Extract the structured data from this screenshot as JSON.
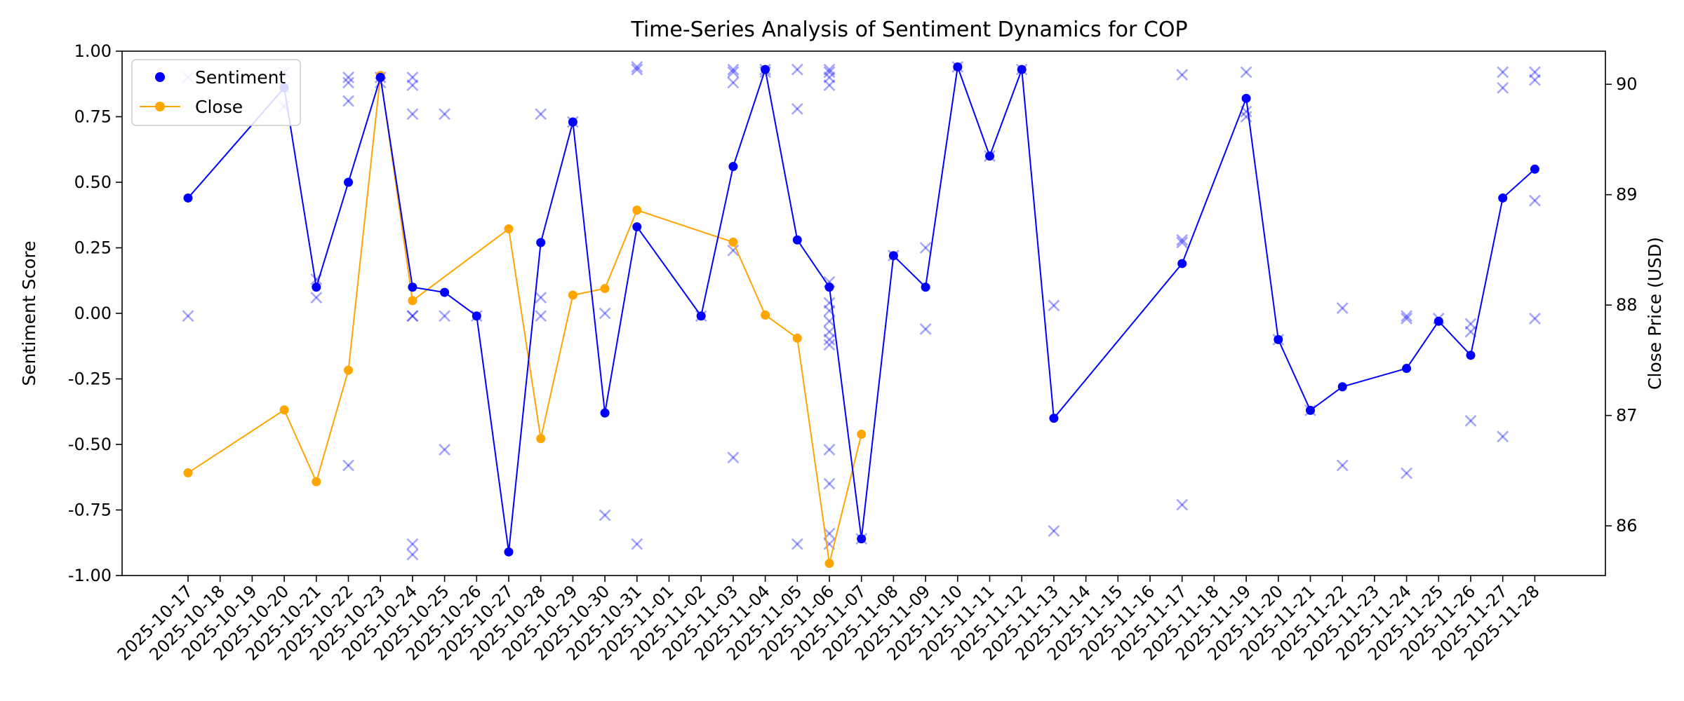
{
  "chart_data": {
    "type": "line",
    "title": "Time-Series Analysis of Sentiment Dynamics for COP",
    "xlabel": "",
    "ylabel": "Sentiment Score",
    "y2label": "Close Price (USD)",
    "ylim": [
      -1.0,
      1.0
    ],
    "y2lim": [
      85.55,
      90.3
    ],
    "yticks": [
      "1.00",
      "0.75",
      "0.50",
      "0.25",
      "0.00",
      "-0.25",
      "-0.50",
      "-0.75",
      "-1.00"
    ],
    "y2ticks": [
      "90",
      "89",
      "88",
      "87",
      "86"
    ],
    "grid": false,
    "legend_position": "top-left",
    "dates": [
      "2025-10-17",
      "2025-10-18",
      "2025-10-19",
      "2025-10-20",
      "2025-10-21",
      "2025-10-22",
      "2025-10-23",
      "2025-10-24",
      "2025-10-25",
      "2025-10-26",
      "2025-10-27",
      "2025-10-28",
      "2025-10-29",
      "2025-10-30",
      "2025-10-31",
      "2025-11-01",
      "2025-11-02",
      "2025-11-03",
      "2025-11-04",
      "2025-11-05",
      "2025-11-06",
      "2025-11-07",
      "2025-11-08",
      "2025-11-09",
      "2025-11-10",
      "2025-11-11",
      "2025-11-12",
      "2025-11-13",
      "2025-11-14",
      "2025-11-15",
      "2025-11-16",
      "2025-11-17",
      "2025-11-18",
      "2025-11-19",
      "2025-11-20",
      "2025-11-21",
      "2025-11-22",
      "2025-11-23",
      "2025-11-24",
      "2025-11-25",
      "2025-11-26",
      "2025-11-27",
      "2025-11-28"
    ],
    "series": [
      {
        "name": "Sentiment",
        "color": "#0000ff",
        "marker": "circle",
        "points": [
          {
            "x": "2025-10-17",
            "y": 0.44
          },
          {
            "x": "2025-10-20",
            "y": 0.86
          },
          {
            "x": "2025-10-21",
            "y": 0.1
          },
          {
            "x": "2025-10-22",
            "y": 0.5
          },
          {
            "x": "2025-10-23",
            "y": 0.9
          },
          {
            "x": "2025-10-24",
            "y": 0.1
          },
          {
            "x": "2025-10-25",
            "y": 0.08
          },
          {
            "x": "2025-10-26",
            "y": -0.01
          },
          {
            "x": "2025-10-27",
            "y": -0.91
          },
          {
            "x": "2025-10-28",
            "y": 0.27
          },
          {
            "x": "2025-10-29",
            "y": 0.73
          },
          {
            "x": "2025-10-30",
            "y": -0.38
          },
          {
            "x": "2025-10-31",
            "y": 0.33
          },
          {
            "x": "2025-11-02",
            "y": -0.01
          },
          {
            "x": "2025-11-03",
            "y": 0.56
          },
          {
            "x": "2025-11-04",
            "y": 0.93
          },
          {
            "x": "2025-11-05",
            "y": 0.28
          },
          {
            "x": "2025-11-06",
            "y": 0.1
          },
          {
            "x": "2025-11-07",
            "y": -0.86
          },
          {
            "x": "2025-11-08",
            "y": 0.22
          },
          {
            "x": "2025-11-09",
            "y": 0.1
          },
          {
            "x": "2025-11-10",
            "y": 0.94
          },
          {
            "x": "2025-11-11",
            "y": 0.6
          },
          {
            "x": "2025-11-12",
            "y": 0.93
          },
          {
            "x": "2025-11-13",
            "y": -0.4
          },
          {
            "x": "2025-11-17",
            "y": 0.19
          },
          {
            "x": "2025-11-19",
            "y": 0.82
          },
          {
            "x": "2025-11-20",
            "y": -0.1
          },
          {
            "x": "2025-11-21",
            "y": -0.37
          },
          {
            "x": "2025-11-22",
            "y": -0.28
          },
          {
            "x": "2025-11-24",
            "y": -0.21
          },
          {
            "x": "2025-11-25",
            "y": -0.03
          },
          {
            "x": "2025-11-26",
            "y": -0.16
          },
          {
            "x": "2025-11-27",
            "y": 0.44
          },
          {
            "x": "2025-11-28",
            "y": 0.55
          }
        ]
      },
      {
        "name": "Close",
        "color": "#ffa500",
        "marker": "circle",
        "axis": "right",
        "points": [
          {
            "x": "2025-10-17",
            "y": 86.48
          },
          {
            "x": "2025-10-20",
            "y": 87.05
          },
          {
            "x": "2025-10-21",
            "y": 86.4
          },
          {
            "x": "2025-10-22",
            "y": 87.41
          },
          {
            "x": "2025-10-23",
            "y": 90.08
          },
          {
            "x": "2025-10-24",
            "y": 88.04
          },
          {
            "x": "2025-10-27",
            "y": 88.69
          },
          {
            "x": "2025-10-28",
            "y": 86.79
          },
          {
            "x": "2025-10-29",
            "y": 88.09
          },
          {
            "x": "2025-10-30",
            "y": 88.15
          },
          {
            "x": "2025-10-31",
            "y": 88.86
          },
          {
            "x": "2025-11-03",
            "y": 88.57
          },
          {
            "x": "2025-11-04",
            "y": 87.91
          },
          {
            "x": "2025-11-05",
            "y": 87.7
          },
          {
            "x": "2025-11-06",
            "y": 85.66
          },
          {
            "x": "2025-11-07",
            "y": 86.83
          }
        ]
      }
    ],
    "scatter": {
      "marker": "x",
      "color": "#0000ff",
      "opacity": 0.35,
      "points": [
        {
          "x": "2025-10-17",
          "y": 0.9
        },
        {
          "x": "2025-10-17",
          "y": -0.01
        },
        {
          "x": "2025-10-20",
          "y": 0.92
        },
        {
          "x": "2025-10-20",
          "y": 0.86
        },
        {
          "x": "2025-10-20",
          "y": 0.79
        },
        {
          "x": "2025-10-21",
          "y": 0.13
        },
        {
          "x": "2025-10-21",
          "y": 0.06
        },
        {
          "x": "2025-10-22",
          "y": 0.9
        },
        {
          "x": "2025-10-22",
          "y": 0.88
        },
        {
          "x": "2025-10-22",
          "y": 0.81
        },
        {
          "x": "2025-10-22",
          "y": -0.58
        },
        {
          "x": "2025-10-23",
          "y": 0.9
        },
        {
          "x": "2025-10-23",
          "y": 0.88
        },
        {
          "x": "2025-10-24",
          "y": 0.9
        },
        {
          "x": "2025-10-24",
          "y": 0.87
        },
        {
          "x": "2025-10-24",
          "y": 0.76
        },
        {
          "x": "2025-10-24",
          "y": -0.01
        },
        {
          "x": "2025-10-24",
          "y": -0.01
        },
        {
          "x": "2025-10-24",
          "y": -0.88
        },
        {
          "x": "2025-10-24",
          "y": -0.92
        },
        {
          "x": "2025-10-25",
          "y": 0.76
        },
        {
          "x": "2025-10-25",
          "y": -0.01
        },
        {
          "x": "2025-10-25",
          "y": -0.52
        },
        {
          "x": "2025-10-26",
          "y": -0.01
        },
        {
          "x": "2025-10-28",
          "y": 0.76
        },
        {
          "x": "2025-10-28",
          "y": 0.06
        },
        {
          "x": "2025-10-28",
          "y": -0.01
        },
        {
          "x": "2025-10-29",
          "y": 0.73
        },
        {
          "x": "2025-10-30",
          "y": 0.0
        },
        {
          "x": "2025-10-30",
          "y": -0.77
        },
        {
          "x": "2025-10-31",
          "y": 0.93
        },
        {
          "x": "2025-10-31",
          "y": 0.94
        },
        {
          "x": "2025-10-31",
          "y": -0.88
        },
        {
          "x": "2025-11-02",
          "y": -0.01
        },
        {
          "x": "2025-11-03",
          "y": 0.93
        },
        {
          "x": "2025-11-03",
          "y": 0.92
        },
        {
          "x": "2025-11-03",
          "y": 0.88
        },
        {
          "x": "2025-11-03",
          "y": 0.24
        },
        {
          "x": "2025-11-03",
          "y": -0.55
        },
        {
          "x": "2025-11-04",
          "y": 0.93
        },
        {
          "x": "2025-11-04",
          "y": 0.92
        },
        {
          "x": "2025-11-05",
          "y": 0.93
        },
        {
          "x": "2025-11-05",
          "y": 0.78
        },
        {
          "x": "2025-11-05",
          "y": -0.88
        },
        {
          "x": "2025-11-06",
          "y": 0.93
        },
        {
          "x": "2025-11-06",
          "y": 0.92
        },
        {
          "x": "2025-11-06",
          "y": 0.9
        },
        {
          "x": "2025-11-06",
          "y": 0.87
        },
        {
          "x": "2025-11-06",
          "y": 0.12
        },
        {
          "x": "2025-11-06",
          "y": 0.04
        },
        {
          "x": "2025-11-06",
          "y": 0.01
        },
        {
          "x": "2025-11-06",
          "y": -0.03
        },
        {
          "x": "2025-11-06",
          "y": -0.07
        },
        {
          "x": "2025-11-06",
          "y": -0.1
        },
        {
          "x": "2025-11-06",
          "y": -0.12
        },
        {
          "x": "2025-11-06",
          "y": -0.52
        },
        {
          "x": "2025-11-06",
          "y": -0.65
        },
        {
          "x": "2025-11-06",
          "y": -0.84
        },
        {
          "x": "2025-11-06",
          "y": -0.88
        },
        {
          "x": "2025-11-07",
          "y": -0.86
        },
        {
          "x": "2025-11-08",
          "y": 0.22
        },
        {
          "x": "2025-11-09",
          "y": 0.25
        },
        {
          "x": "2025-11-09",
          "y": -0.06
        },
        {
          "x": "2025-11-10",
          "y": 0.94
        },
        {
          "x": "2025-11-11",
          "y": 0.6
        },
        {
          "x": "2025-11-12",
          "y": 0.93
        },
        {
          "x": "2025-11-13",
          "y": 0.03
        },
        {
          "x": "2025-11-13",
          "y": -0.83
        },
        {
          "x": "2025-11-17",
          "y": 0.91
        },
        {
          "x": "2025-11-17",
          "y": 0.28
        },
        {
          "x": "2025-11-17",
          "y": 0.27
        },
        {
          "x": "2025-11-17",
          "y": -0.73
        },
        {
          "x": "2025-11-19",
          "y": 0.92
        },
        {
          "x": "2025-11-19",
          "y": 0.77
        },
        {
          "x": "2025-11-19",
          "y": 0.75
        },
        {
          "x": "2025-11-20",
          "y": -0.1
        },
        {
          "x": "2025-11-21",
          "y": -0.37
        },
        {
          "x": "2025-11-22",
          "y": 0.02
        },
        {
          "x": "2025-11-22",
          "y": -0.58
        },
        {
          "x": "2025-11-24",
          "y": -0.01
        },
        {
          "x": "2025-11-24",
          "y": -0.02
        },
        {
          "x": "2025-11-24",
          "y": -0.61
        },
        {
          "x": "2025-11-25",
          "y": -0.02
        },
        {
          "x": "2025-11-26",
          "y": -0.04
        },
        {
          "x": "2025-11-26",
          "y": -0.07
        },
        {
          "x": "2025-11-26",
          "y": -0.41
        },
        {
          "x": "2025-11-27",
          "y": 0.92
        },
        {
          "x": "2025-11-27",
          "y": 0.86
        },
        {
          "x": "2025-11-27",
          "y": -0.47
        },
        {
          "x": "2025-11-28",
          "y": 0.92
        },
        {
          "x": "2025-11-28",
          "y": 0.89
        },
        {
          "x": "2025-11-28",
          "y": 0.43
        },
        {
          "x": "2025-11-28",
          "y": -0.02
        }
      ]
    }
  }
}
